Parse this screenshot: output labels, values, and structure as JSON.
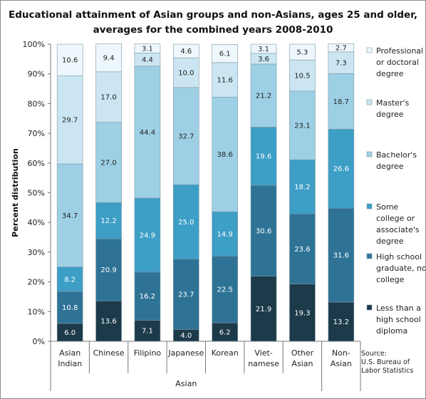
{
  "title_lines": [
    "Educational attainment of Asian groups and non-Asians, ages 25 and older,",
    "averages for the combined years 2008-2010"
  ],
  "group_label": "Asian",
  "source_lines": [
    "Source:",
    "U.S. Bureau of",
    "Labor Statistics"
  ],
  "chart_data": {
    "type": "bar",
    "stacked": true,
    "percent_stacked": true,
    "title": "Educational attainment of Asian groups and non-Asians, ages 25 and older, averages for the combined years 2008-2010",
    "ylabel": "Percent distribution",
    "xlabel": "Asian",
    "ylim": [
      0,
      100
    ],
    "yticks": [
      "0%",
      "10%",
      "20%",
      "30%",
      "40%",
      "50%",
      "60%",
      "70%",
      "80%",
      "90%",
      "100%"
    ],
    "grid": false,
    "legend_position": "right",
    "categories": [
      [
        "Asian",
        "Indian"
      ],
      [
        "Chinese"
      ],
      [
        "Filipino"
      ],
      [
        "Japanese"
      ],
      [
        "Korean"
      ],
      [
        "Viet-",
        "namese"
      ],
      [
        "Other",
        "Asian"
      ],
      [
        "Non-",
        "Asian"
      ]
    ],
    "series": [
      {
        "name": [
          "Less than a",
          "high school",
          "diploma"
        ],
        "color": "#1c3a4a",
        "label_color": "#ffffff",
        "values": [
          6.0,
          13.6,
          7.1,
          4.0,
          6.2,
          21.9,
          19.3,
          13.2
        ]
      },
      {
        "name": [
          "High school",
          "graduate, no",
          "college"
        ],
        "color": "#2e7396",
        "label_color": "#ffffff",
        "values": [
          10.8,
          20.9,
          16.2,
          23.7,
          22.5,
          30.6,
          23.6,
          31.6
        ]
      },
      {
        "name": [
          "Some",
          "college or",
          "associate's",
          "degree"
        ],
        "color": "#3d9ec6",
        "label_color": "#ffffff",
        "values": [
          8.2,
          12.2,
          24.9,
          25.0,
          14.9,
          19.6,
          18.2,
          26.6
        ]
      },
      {
        "name": [
          "Bachelor's",
          "degree"
        ],
        "color": "#9ed0e5",
        "label_color": "#222222",
        "values": [
          34.7,
          27.0,
          44.4,
          32.7,
          38.6,
          21.2,
          23.1,
          18.7
        ]
      },
      {
        "name": [
          "Master's",
          "degree"
        ],
        "color": "#cbe6f2",
        "label_color": "#222222",
        "values": [
          29.7,
          17.0,
          4.4,
          10.0,
          11.6,
          3.6,
          10.5,
          7.3
        ]
      },
      {
        "name": [
          "Professional",
          "or doctoral",
          "degree"
        ],
        "color": "#eef8fc",
        "label_color": "#222222",
        "values": [
          10.6,
          9.4,
          3.1,
          4.6,
          6.1,
          3.1,
          5.3,
          2.7
        ]
      }
    ]
  }
}
